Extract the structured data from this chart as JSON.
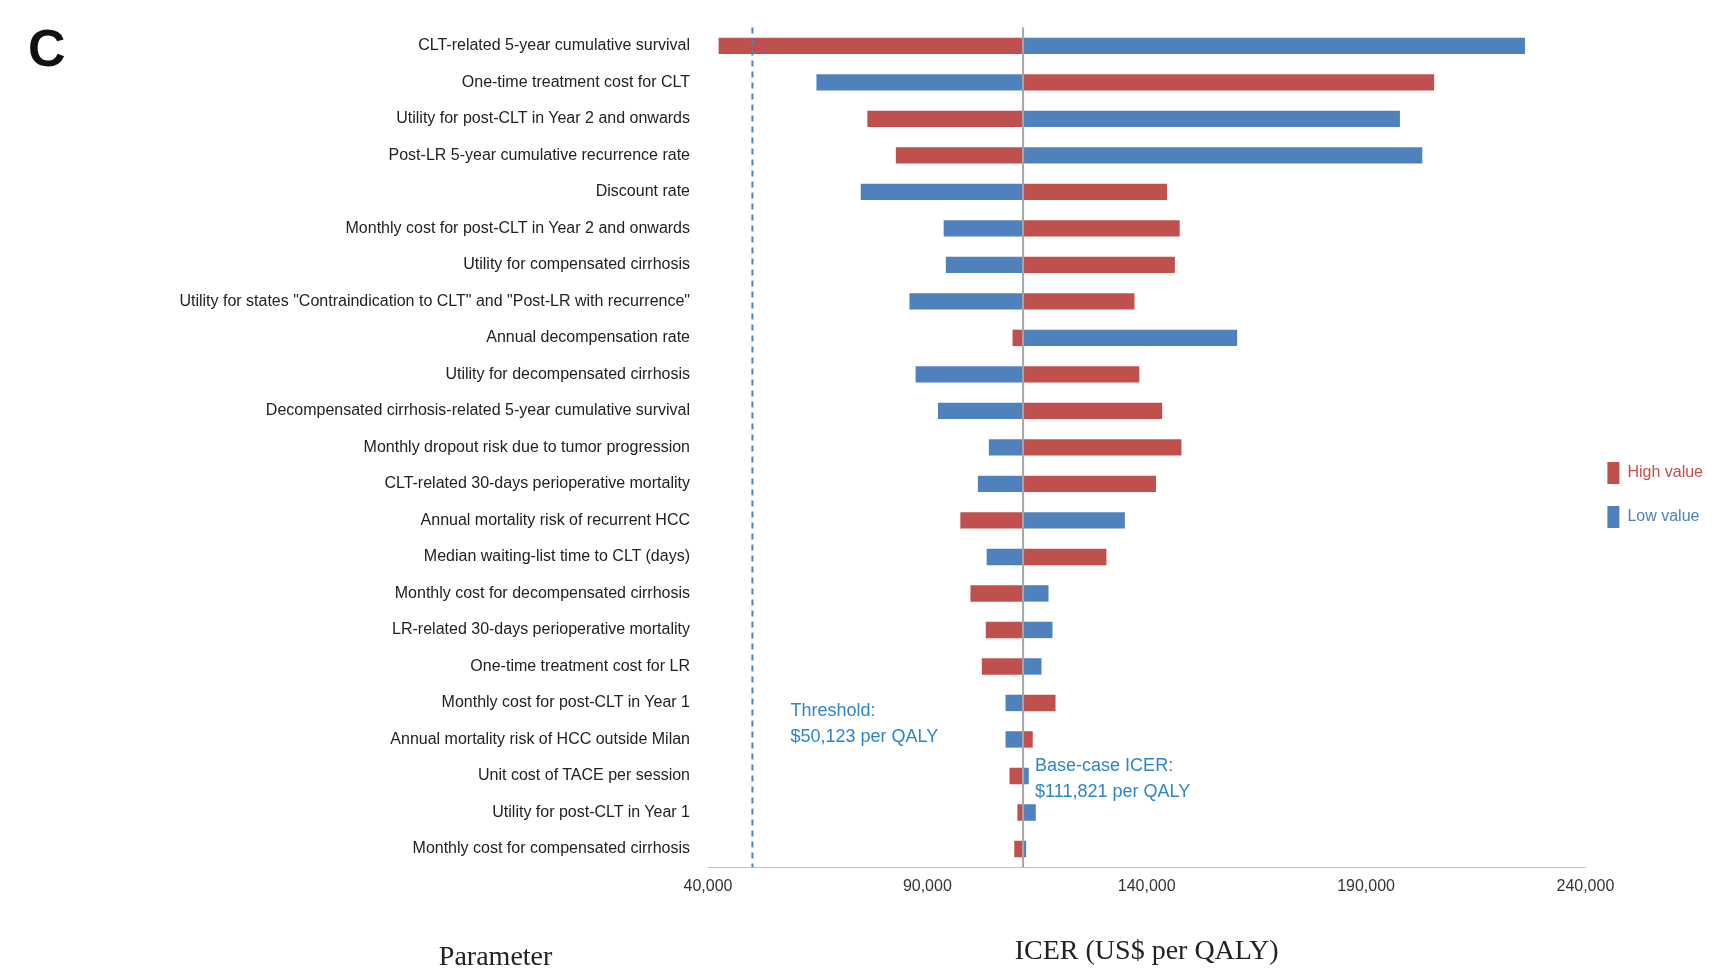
{
  "chart_data": {
    "type": "bar",
    "orientation": "horizontal",
    "xlabel": "ICER (US$ per QALY)",
    "ylabel": "Parameter",
    "categories": [
      "CLT-related 5-year cumulative survival",
      "One-time treatment cost for CLT",
      "Utility for post-CLT in Year 2 and onwards",
      "Post-LR 5-year cumulative recurrence rate",
      "Discount rate",
      "Monthly cost for post-CLT in Year 2 and onwards",
      "Utility for compensated cirrhosis",
      "Utility for states \"Contraindication to CLT\" and \"Post-LR with recurrence\"",
      "Annual decompensation rate",
      "Utility for decompensated cirrhosis",
      "Decompensated cirrhosis-related 5-year cumulative survival",
      "Monthly dropout risk due to tumor progression",
      "CLT-related 30-days perioperative mortality",
      "Annual mortality risk of recurrent HCC",
      "Median waiting-list time to CLT (days)",
      "Monthly cost for decompensated cirrhosis",
      "LR-related 30-days perioperative mortality",
      "One-time treatment cost for LR",
      "Monthly cost for post-CLT in Year 1",
      "Annual mortality risk of HCC outside Milan",
      "Unit cost of TACE per session",
      "Utility for post-CLT in Year 1",
      "Monthly cost for compensated cirrhosis"
    ],
    "series": [
      {
        "name": "High value",
        "color": "#c0504d",
        "base": [
          111821,
          111821,
          111821,
          111821,
          111821,
          111821,
          111821,
          111821,
          111821,
          111821,
          111821,
          111821,
          111821,
          111821,
          111821,
          111821,
          111821,
          111821,
          111821,
          111821,
          111821,
          111821,
          111821
        ],
        "values": [
          -69400,
          93700,
          -35500,
          -29000,
          32800,
          35700,
          34600,
          25400,
          -2400,
          26500,
          31700,
          36100,
          30300,
          -14300,
          19000,
          -12000,
          -8500,
          -9400,
          7400,
          2200,
          -3100,
          -1300,
          -2000
        ]
      },
      {
        "name": "Low value",
        "color": "#4f81bd",
        "base": [
          111821,
          111821,
          111821,
          111821,
          111821,
          111821,
          111821,
          111821,
          111821,
          111821,
          111821,
          111821,
          111821,
          111821,
          111821,
          111821,
          111821,
          111821,
          111821,
          111821,
          111821,
          111821,
          111821
        ],
        "values": [
          114400,
          -47100,
          85900,
          91000,
          -37000,
          -18100,
          -17600,
          -25900,
          48800,
          -24500,
          -19400,
          -7800,
          -10300,
          23200,
          -8300,
          5800,
          6700,
          4200,
          -4000,
          -4000,
          1300,
          2900,
          700
        ]
      }
    ],
    "xlim": [
      40000,
      240000
    ],
    "xticks": [
      {
        "value": 40000,
        "label": "40,000"
      },
      {
        "value": 90000,
        "label": "90,000"
      },
      {
        "value": 140000,
        "label": "140,000"
      },
      {
        "value": 190000,
        "label": "190,000"
      },
      {
        "value": 240000,
        "label": "240,000"
      }
    ],
    "ref_lines": [
      {
        "axis": "x",
        "value": 50123,
        "label": "Threshold:\n$50,123 per QALY",
        "color": "#4f81bd",
        "line_style": "dashed"
      },
      {
        "axis": "x",
        "value": 111821,
        "label": "Base-case ICER:\n$111,821 per QALY",
        "color": "#a6a6a6",
        "line_style": "solid"
      }
    ],
    "annotations": [
      "C"
    ],
    "grid": false,
    "legend": "right"
  }
}
